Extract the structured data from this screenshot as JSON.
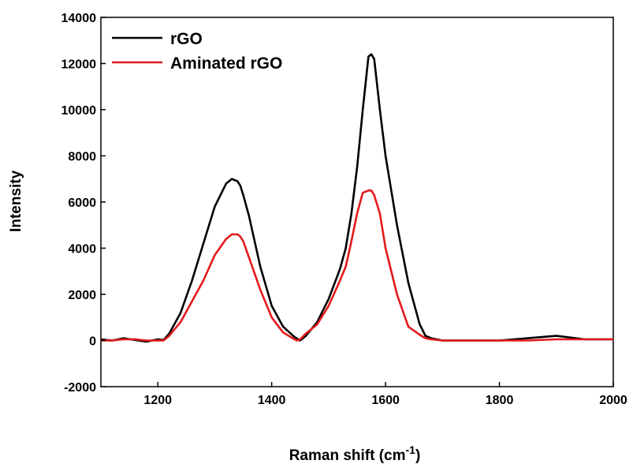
{
  "chart_data": {
    "type": "line",
    "title": "",
    "xlabel": "Raman shift (cm",
    "xlabel_sup": "-1",
    "xlabel_close": ")",
    "ylabel": "Intensity",
    "xlim": [
      1100,
      2000
    ],
    "ylim": [
      -2000,
      14000
    ],
    "x_ticks": [
      1200,
      1400,
      1600,
      1800,
      2000
    ],
    "y_ticks": [
      -2000,
      0,
      2000,
      4000,
      6000,
      8000,
      10000,
      12000,
      14000
    ],
    "grid": false,
    "legend": "top-left",
    "series": [
      {
        "name": "rGO",
        "color": "#000000",
        "x": [
          1100,
          1120,
          1140,
          1160,
          1180,
          1200,
          1210,
          1220,
          1240,
          1260,
          1280,
          1300,
          1320,
          1330,
          1340,
          1345,
          1350,
          1360,
          1380,
          1400,
          1420,
          1440,
          1450,
          1460,
          1480,
          1500,
          1520,
          1530,
          1540,
          1550,
          1560,
          1570,
          1575,
          1580,
          1590,
          1600,
          1620,
          1640,
          1660,
          1670,
          1680,
          1700,
          1750,
          1800,
          1850,
          1900,
          1950,
          2000
        ],
        "y": [
          50,
          0,
          100,
          20,
          -50,
          50,
          20,
          300,
          1200,
          2600,
          4200,
          5800,
          6800,
          7000,
          6900,
          6700,
          6300,
          5400,
          3200,
          1500,
          600,
          150,
          0,
          200,
          800,
          1800,
          3100,
          4000,
          5500,
          7500,
          10000,
          12300,
          12400,
          12200,
          10000,
          8000,
          5000,
          2500,
          700,
          200,
          100,
          0,
          0,
          0,
          100,
          200,
          50,
          50
        ]
      },
      {
        "name": "Aminated rGO",
        "color": "#e41a1c",
        "x": [
          1100,
          1120,
          1140,
          1160,
          1180,
          1200,
          1210,
          1220,
          1240,
          1260,
          1280,
          1300,
          1320,
          1330,
          1340,
          1345,
          1350,
          1360,
          1380,
          1400,
          1420,
          1440,
          1445,
          1450,
          1460,
          1480,
          1500,
          1520,
          1530,
          1540,
          1550,
          1560,
          1570,
          1575,
          1580,
          1590,
          1600,
          1620,
          1640,
          1660,
          1670,
          1680,
          1700,
          1750,
          1800,
          1850,
          1900,
          1950,
          2000
        ],
        "y": [
          0,
          0,
          50,
          50,
          0,
          0,
          0,
          200,
          800,
          1700,
          2600,
          3700,
          4400,
          4600,
          4600,
          4500,
          4300,
          3600,
          2200,
          1000,
          350,
          50,
          0,
          50,
          300,
          700,
          1500,
          2600,
          3200,
          4300,
          5500,
          6400,
          6500,
          6500,
          6300,
          5500,
          4000,
          2000,
          600,
          250,
          100,
          50,
          0,
          0,
          0,
          0,
          50,
          50,
          50
        ]
      }
    ]
  }
}
